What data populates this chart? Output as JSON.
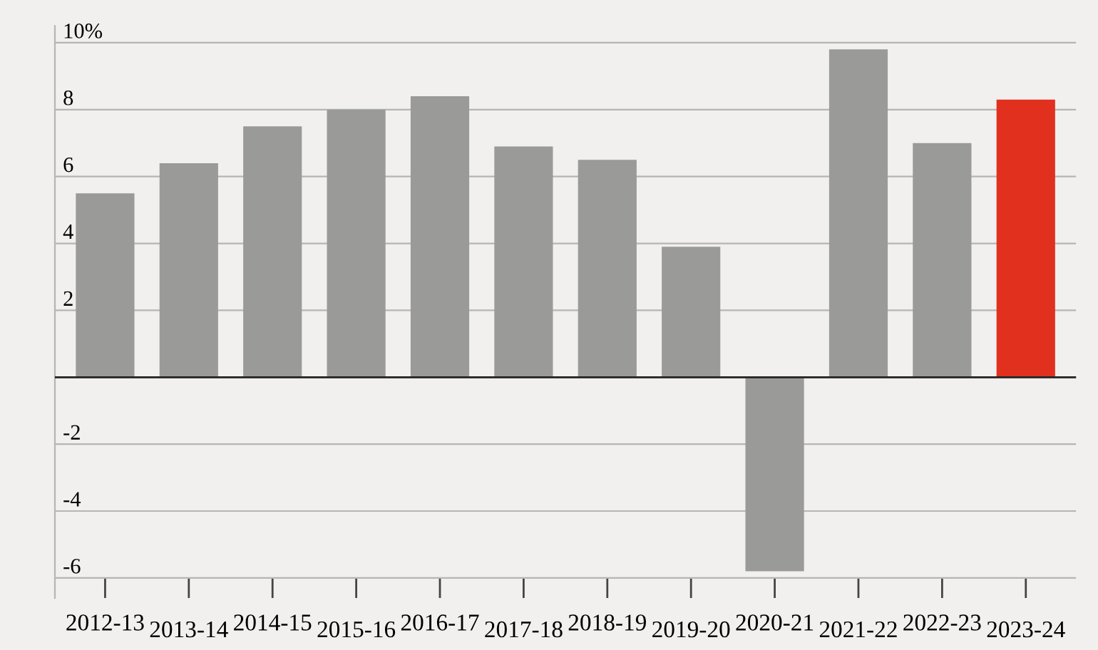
{
  "chart_data": {
    "type": "bar",
    "categories": [
      "2012-13",
      "2013-14",
      "2014-15",
      "2015-16",
      "2016-17",
      "2017-18",
      "2018-19",
      "2019-20",
      "2020-21",
      "2021-22",
      "2022-23",
      "2023-24"
    ],
    "values": [
      5.5,
      6.4,
      7.5,
      8.0,
      8.4,
      6.9,
      6.5,
      3.9,
      -5.8,
      9.8,
      7.0,
      8.3
    ],
    "colors": [
      "#9a9a98",
      "#9a9a98",
      "#9a9a98",
      "#9a9a98",
      "#9a9a98",
      "#9a9a98",
      "#9a9a98",
      "#9a9a98",
      "#9a9a98",
      "#9a9a98",
      "#9a9a98",
      "#e2301f"
    ],
    "ylim": [
      -6.6,
      10.5
    ],
    "yticks": [
      {
        "value": 10,
        "label": "10%"
      },
      8,
      6,
      4,
      2,
      {
        "value": 0,
        "label": null
      },
      {
        "value": -2,
        "label": "-2"
      },
      {
        "value": -4,
        "label": "-4"
      },
      {
        "value": -6,
        "label": "-6"
      }
    ],
    "grid": "y",
    "legend": false
  }
}
